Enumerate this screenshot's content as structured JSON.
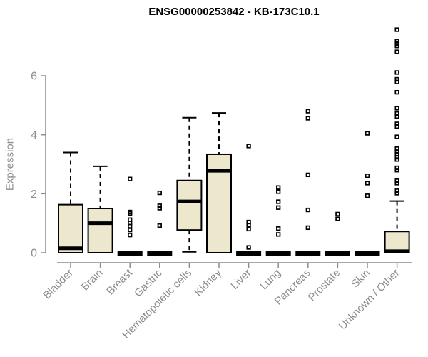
{
  "title": "ENSG00000253842 - KB-173C10.1",
  "chart_data": {
    "type": "boxplot",
    "title": "ENSG00000253842 - KB-173C10.1",
    "ylabel": "Expression",
    "xlabel": "",
    "yticks": [
      0,
      2,
      4,
      6
    ],
    "ylim": [
      0,
      7.7
    ],
    "grid": false,
    "legend": "none",
    "colors": {
      "box_fill": "#EDE8CD",
      "box_stroke": "#000000",
      "median": "#000000",
      "whisker": "#000000",
      "outlier": "#000000",
      "axis": "#8C8C8C",
      "tick_label": "#8C8C8C",
      "title": "#000000"
    },
    "categories": [
      "Bladder",
      "Brain",
      "Breast",
      "Gastric",
      "Hematopoietic cells",
      "Kidney",
      "Liver",
      "Lung",
      "Pancreas",
      "Prostate",
      "Skin",
      "Unknown / Other"
    ],
    "series": [
      {
        "label": "Bladder",
        "q1": 0,
        "median": 0.15,
        "q3": 1.63,
        "whisker_low": 0,
        "whisker_high": 3.4,
        "outliers": []
      },
      {
        "label": "Brain",
        "q1": 0,
        "median": 1.0,
        "q3": 1.5,
        "whisker_low": 0,
        "whisker_high": 2.93,
        "outliers": []
      },
      {
        "label": "Breast",
        "q1": 0,
        "median": 0,
        "q3": 0,
        "whisker_low": 0,
        "whisker_high": 0,
        "outliers": [
          2.5,
          1.38,
          1.33,
          1.12,
          1.01,
          0.9,
          0.77,
          0.6
        ]
      },
      {
        "label": "Gastric",
        "q1": 0,
        "median": 0,
        "q3": 0,
        "whisker_low": 0,
        "whisker_high": 0,
        "outliers": [
          2.03,
          1.59,
          1.51,
          0.92
        ]
      },
      {
        "label": "Hematopoietic cells",
        "q1": 0.77,
        "median": 1.74,
        "q3": 2.45,
        "whisker_low": 0.03,
        "whisker_high": 4.58,
        "outliers": []
      },
      {
        "label": "Kidney",
        "q1": 0,
        "median": 2.78,
        "q3": 3.34,
        "whisker_low": 0,
        "whisker_high": 4.74,
        "outliers": []
      },
      {
        "label": "Liver",
        "q1": 0,
        "median": 0,
        "q3": 0,
        "whisker_low": 0,
        "whisker_high": 0,
        "outliers": [
          3.62,
          1.04,
          0.94,
          0.8,
          0.18
        ]
      },
      {
        "label": "Lung",
        "q1": 0,
        "median": 0,
        "q3": 0,
        "whisker_low": 0,
        "whisker_high": 0,
        "outliers": [
          2.21,
          2.07,
          1.73,
          1.53,
          0.82,
          0.62
        ]
      },
      {
        "label": "Pancreas",
        "q1": 0,
        "median": 0,
        "q3": 0,
        "whisker_low": 0,
        "whisker_high": 0,
        "outliers": [
          4.8,
          4.56,
          2.64,
          1.45,
          0.85
        ]
      },
      {
        "label": "Prostate",
        "q1": 0,
        "median": 0,
        "q3": 0,
        "whisker_low": 0,
        "whisker_high": 0,
        "outliers": [
          1.31,
          1.15
        ]
      },
      {
        "label": "Skin",
        "q1": 0,
        "median": 0,
        "q3": 0,
        "whisker_low": 0,
        "whisker_high": 0,
        "outliers": [
          4.05,
          2.61,
          2.36,
          1.93
        ]
      },
      {
        "label": "Unknown / Other",
        "q1": 0,
        "median": 0.05,
        "q3": 0.72,
        "whisker_low": 0,
        "whisker_high": 1.75,
        "outliers": [
          7.56,
          7.17,
          7.09,
          7.01,
          6.81,
          6.11,
          5.88,
          5.79,
          5.44,
          4.9,
          4.72,
          4.62,
          4.37,
          4.28,
          3.93,
          3.53,
          3.43,
          3.34,
          3.24,
          3.16,
          2.88,
          2.8,
          2.44,
          2.36,
          2.1,
          2.02
        ]
      }
    ]
  }
}
